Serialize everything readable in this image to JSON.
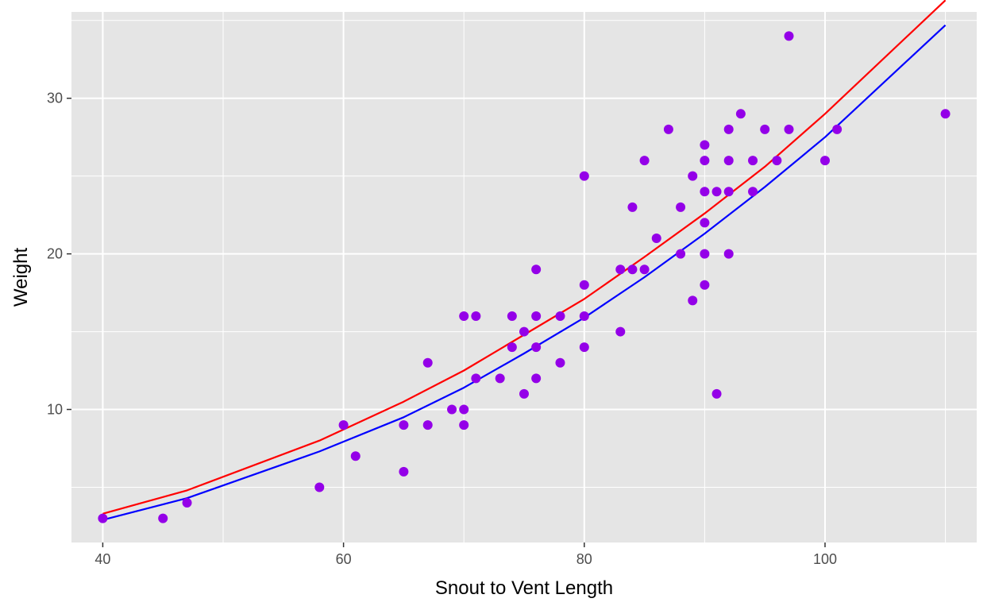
{
  "chart_data": {
    "type": "scatter",
    "title": "",
    "xlabel": "Snout to Vent Length",
    "ylabel": "Weight",
    "xlim": [
      37.4,
      112.6
    ],
    "ylim": [
      1.45,
      35.55
    ],
    "x_ticks": [
      40,
      60,
      80,
      100
    ],
    "y_ticks": [
      10,
      20,
      30
    ],
    "x_tick_labels": [
      "40",
      "60",
      "80",
      "100"
    ],
    "y_tick_labels": [
      "10",
      "20",
      "30"
    ],
    "grid": true,
    "legend": "none",
    "colors": {
      "panel_background": "#e5e5e5",
      "grid": "#ffffff",
      "points": "#9400e8",
      "curve_red": "#ff0000",
      "curve_blue": "#0000ff"
    },
    "points": [
      [
        40,
        3
      ],
      [
        45,
        3
      ],
      [
        47,
        4
      ],
      [
        58,
        5
      ],
      [
        60,
        9
      ],
      [
        61,
        7
      ],
      [
        65,
        9
      ],
      [
        65,
        6
      ],
      [
        67,
        13
      ],
      [
        67,
        9
      ],
      [
        69,
        10
      ],
      [
        70,
        16
      ],
      [
        70,
        10
      ],
      [
        70,
        9
      ],
      [
        71,
        16
      ],
      [
        71,
        12
      ],
      [
        73,
        12
      ],
      [
        74,
        16
      ],
      [
        74,
        14
      ],
      [
        75,
        15
      ],
      [
        75,
        11
      ],
      [
        76,
        19
      ],
      [
        76,
        16
      ],
      [
        76,
        14
      ],
      [
        76,
        12
      ],
      [
        78,
        16
      ],
      [
        78,
        13
      ],
      [
        80,
        25
      ],
      [
        80,
        18
      ],
      [
        80,
        16
      ],
      [
        80,
        14
      ],
      [
        83,
        19
      ],
      [
        83,
        15
      ],
      [
        84,
        23
      ],
      [
        84,
        19
      ],
      [
        85,
        26
      ],
      [
        85,
        19
      ],
      [
        86,
        21
      ],
      [
        87,
        28
      ],
      [
        88,
        23
      ],
      [
        88,
        20
      ],
      [
        89,
        25
      ],
      [
        89,
        17
      ],
      [
        90,
        27
      ],
      [
        90,
        26
      ],
      [
        90,
        24
      ],
      [
        90,
        22
      ],
      [
        90,
        20
      ],
      [
        90,
        18
      ],
      [
        91,
        24
      ],
      [
        91,
        11
      ],
      [
        92,
        28
      ],
      [
        92,
        26
      ],
      [
        92,
        24
      ],
      [
        92,
        20
      ],
      [
        93,
        29
      ],
      [
        94,
        26
      ],
      [
        94,
        24
      ],
      [
        95,
        28
      ],
      [
        96,
        26
      ],
      [
        97,
        34
      ],
      [
        97,
        28
      ],
      [
        100,
        26
      ],
      [
        101,
        28
      ],
      [
        110,
        29
      ]
    ],
    "series": [
      {
        "color": "#ff0000",
        "x": [
          40,
          47,
          58,
          65,
          70,
          75,
          80,
          85,
          90,
          95,
          100,
          110
        ],
        "y": [
          3.3,
          4.8,
          8.0,
          10.5,
          12.5,
          14.8,
          17.1,
          19.8,
          22.6,
          25.6,
          29.0,
          36.3
        ]
      },
      {
        "color": "#0000ff",
        "x": [
          40,
          47,
          58,
          65,
          70,
          75,
          80,
          85,
          90,
          95,
          100,
          110
        ],
        "y": [
          2.9,
          4.3,
          7.3,
          9.5,
          11.4,
          13.6,
          15.9,
          18.5,
          21.3,
          24.3,
          27.5,
          34.7
        ]
      }
    ]
  }
}
